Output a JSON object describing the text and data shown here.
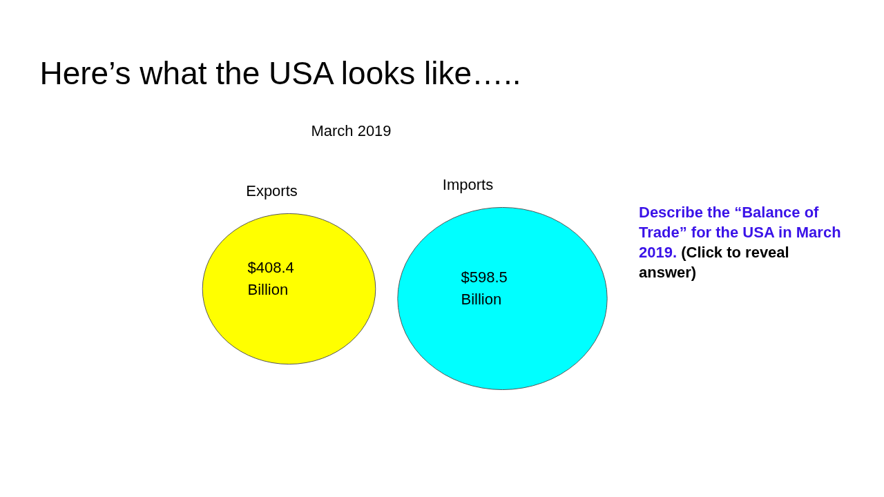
{
  "chart_data": {
    "type": "other",
    "title": "Here’s what the USA looks like…..",
    "subtitle": "March 2019",
    "categories": [
      "Exports",
      "Imports"
    ],
    "values": [
      408.4,
      598.5
    ],
    "colors": [
      "#ffff00",
      "#00ffff"
    ],
    "value_labels": [
      "$408.4 Billion",
      "$598.5 Billion"
    ],
    "annotations": [
      "Describe the “Balance of Trade” for the USA in March 2019.",
      "(Click to reveal answer)"
    ]
  }
}
